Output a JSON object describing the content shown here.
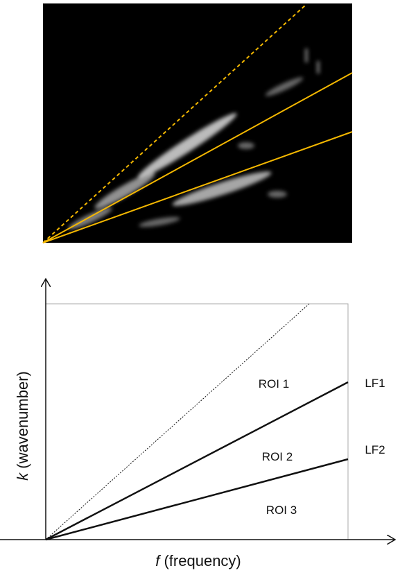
{
  "diagram": {
    "regions": [
      {
        "label": "ROI 1"
      },
      {
        "label": "ROI 2"
      },
      {
        "label": "ROI 3"
      }
    ],
    "lines": [
      {
        "label": "LF1"
      },
      {
        "label": "LF2"
      }
    ],
    "y_axis": {
      "symbol": "k",
      "label": "(wavenumber)"
    },
    "x_axis": {
      "symbol": "f",
      "label": "(frequency)"
    }
  }
}
